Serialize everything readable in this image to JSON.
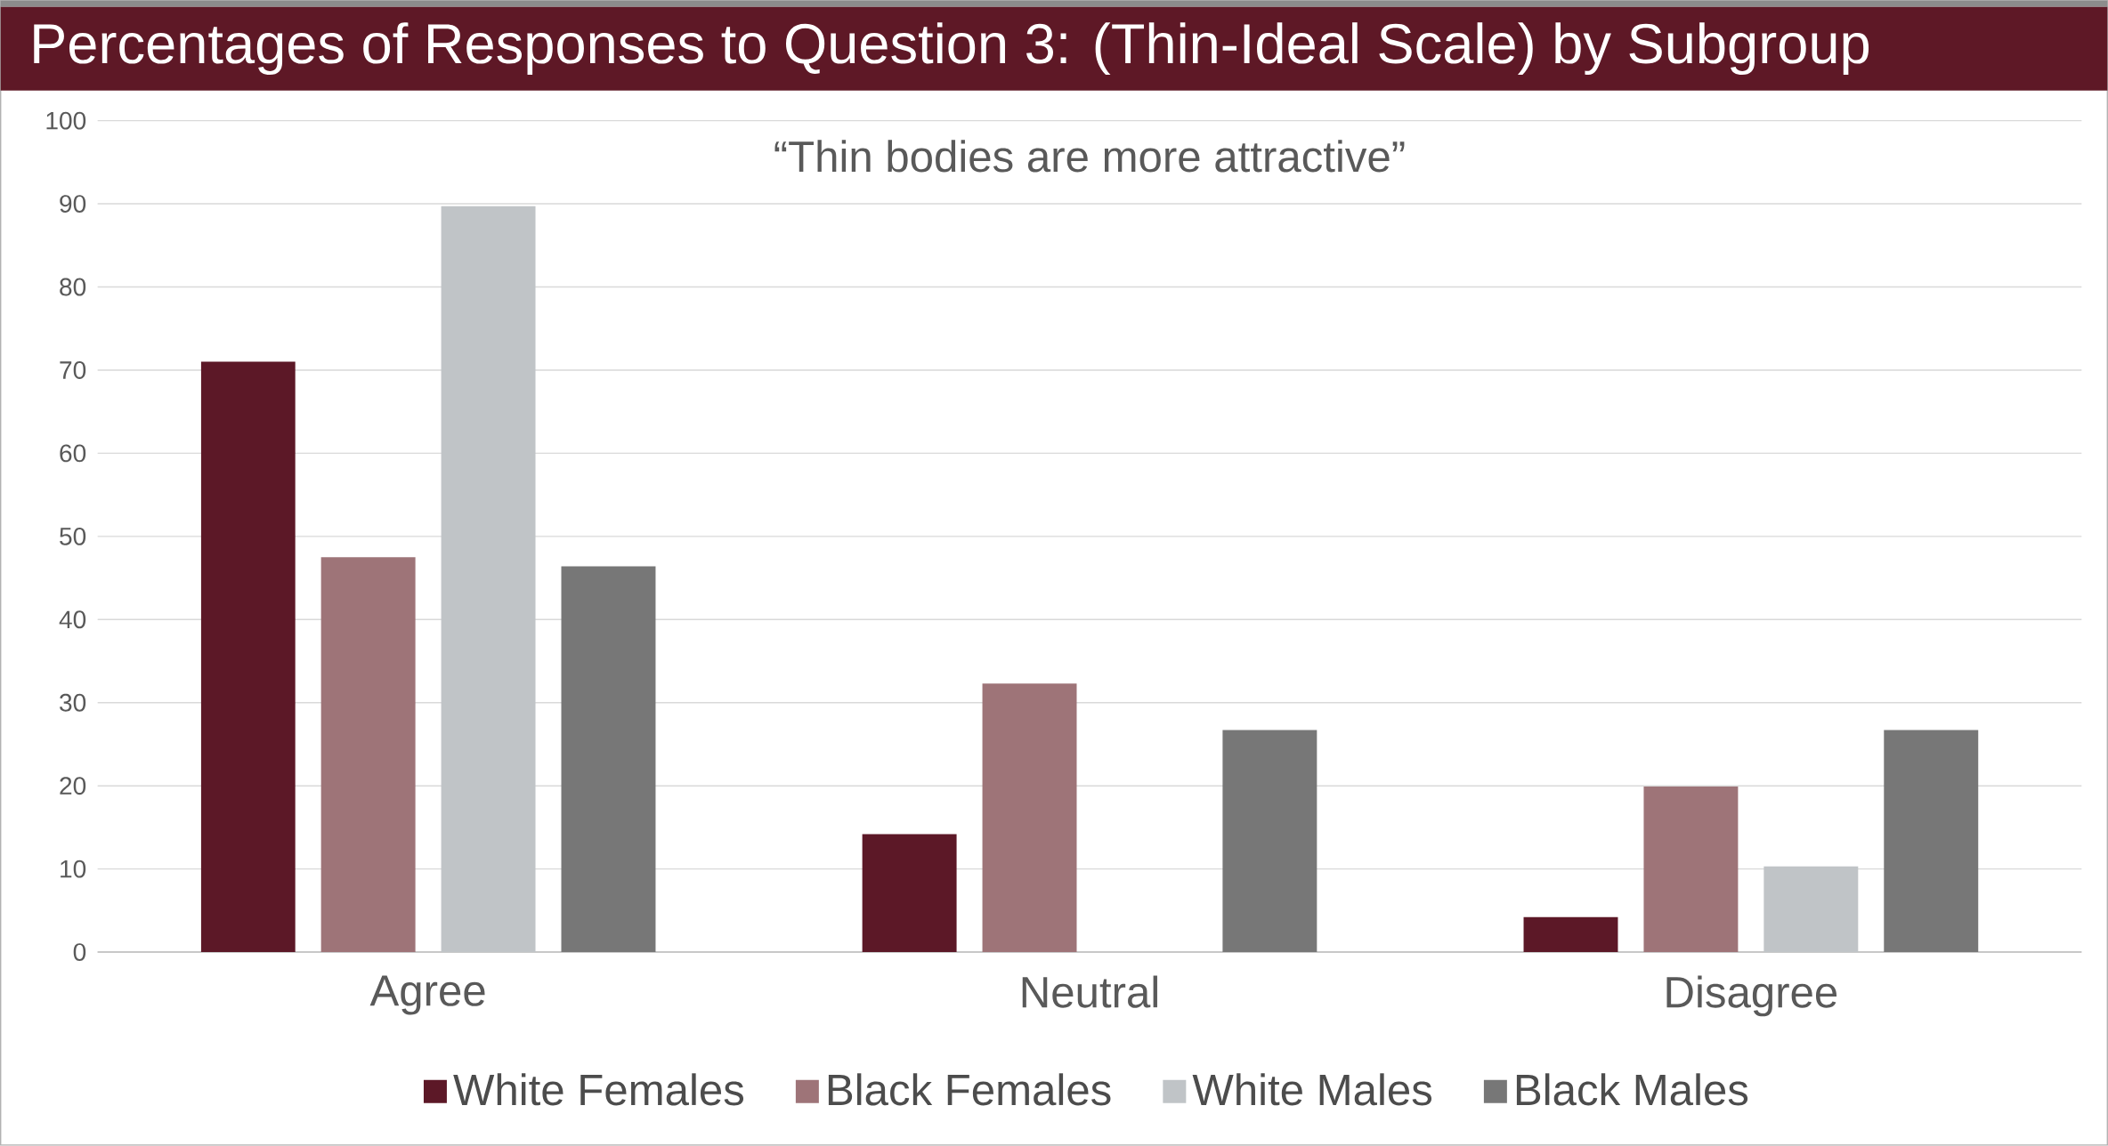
{
  "chart_data": {
    "type": "bar",
    "title": "Percentages of Responses to Question 3: (Thin-Ideal Scale) by Subgroup",
    "subtitle": "“Thin bodies are more attractive”",
    "categories": [
      "Agree",
      "Neutral",
      "Disagree"
    ],
    "series": [
      {
        "name": "White Females",
        "color": "#5c1827",
        "values": [
          71,
          14.2,
          4.2
        ]
      },
      {
        "name": "Black Females",
        "color": "#9e7478",
        "values": [
          47.5,
          32.3,
          19.9
        ]
      },
      {
        "name": "White Males",
        "color": "#c0c4c7",
        "values": [
          89.7,
          0,
          10.3
        ]
      },
      {
        "name": "Black Males",
        "color": "#777777",
        "values": [
          46.4,
          26.7,
          26.7
        ]
      }
    ],
    "ylim": [
      0,
      100
    ],
    "yticks": [
      0,
      10,
      20,
      30,
      40,
      50,
      60,
      70,
      80,
      90,
      100
    ],
    "grid": "y",
    "legend": "bottom"
  }
}
